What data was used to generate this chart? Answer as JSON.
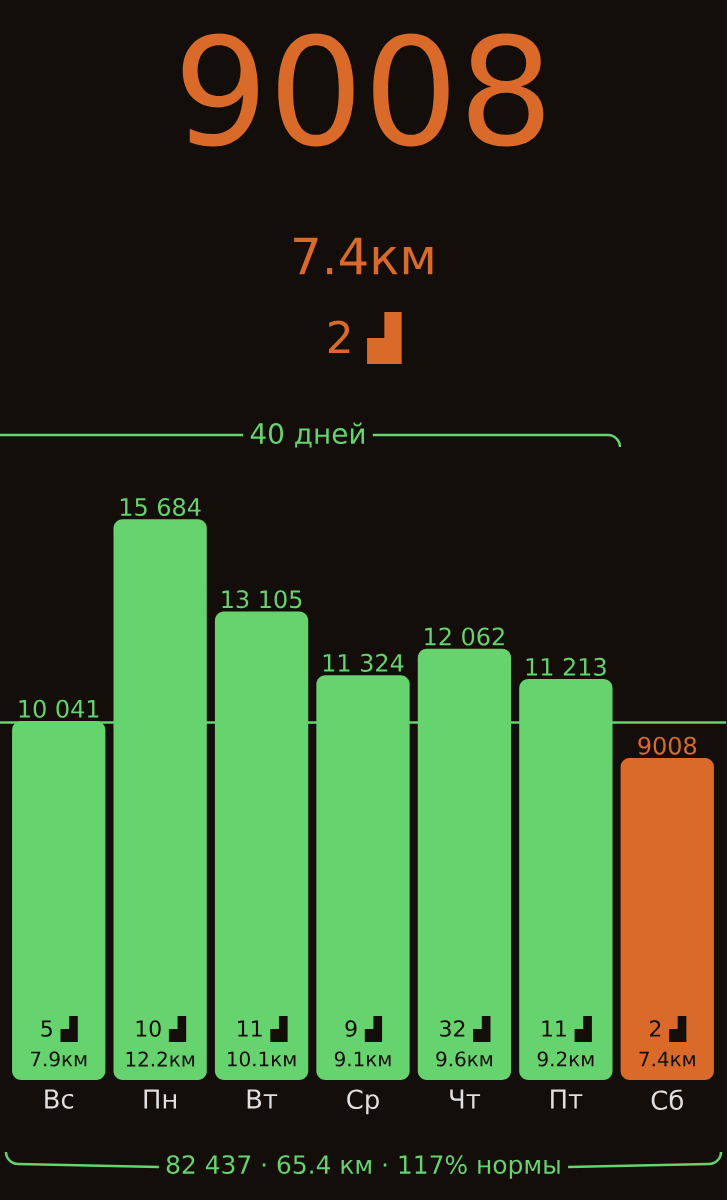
{
  "chart_data": {
    "type": "bar",
    "title": "9008",
    "subtitle": "7.4км",
    "categories": [
      "Вс",
      "Пн",
      "Вт",
      "Ср",
      "Чт",
      "Пт",
      "Сб"
    ],
    "values": [
      10041,
      15684,
      13105,
      11324,
      12062,
      11213,
      9008
    ],
    "value_labels": [
      "10 041",
      "15 684",
      "13 105",
      "11 324",
      "12 062",
      "11 213",
      "9008"
    ],
    "colors": [
      "#66d36e",
      "#66d36e",
      "#66d36e",
      "#66d36e",
      "#66d36e",
      "#66d36e",
      "#d96a2a"
    ],
    "ref_lines": [
      {
        "axis": "y",
        "value": 10000,
        "color": "#66d36e"
      }
    ],
    "annotations": [
      "2 ▟",
      "40 дней",
      "82 437 · 65.4 км · 117% нормы",
      "5 ▟",
      "7.9км",
      "10 ▟",
      "12.2км",
      "11 ▟",
      "10.1км",
      "9 ▟",
      "9.1км",
      "32 ▟",
      "9.6км",
      "11 ▟",
      "9.2км",
      "2 ▟",
      "7.4км"
    ]
  }
}
